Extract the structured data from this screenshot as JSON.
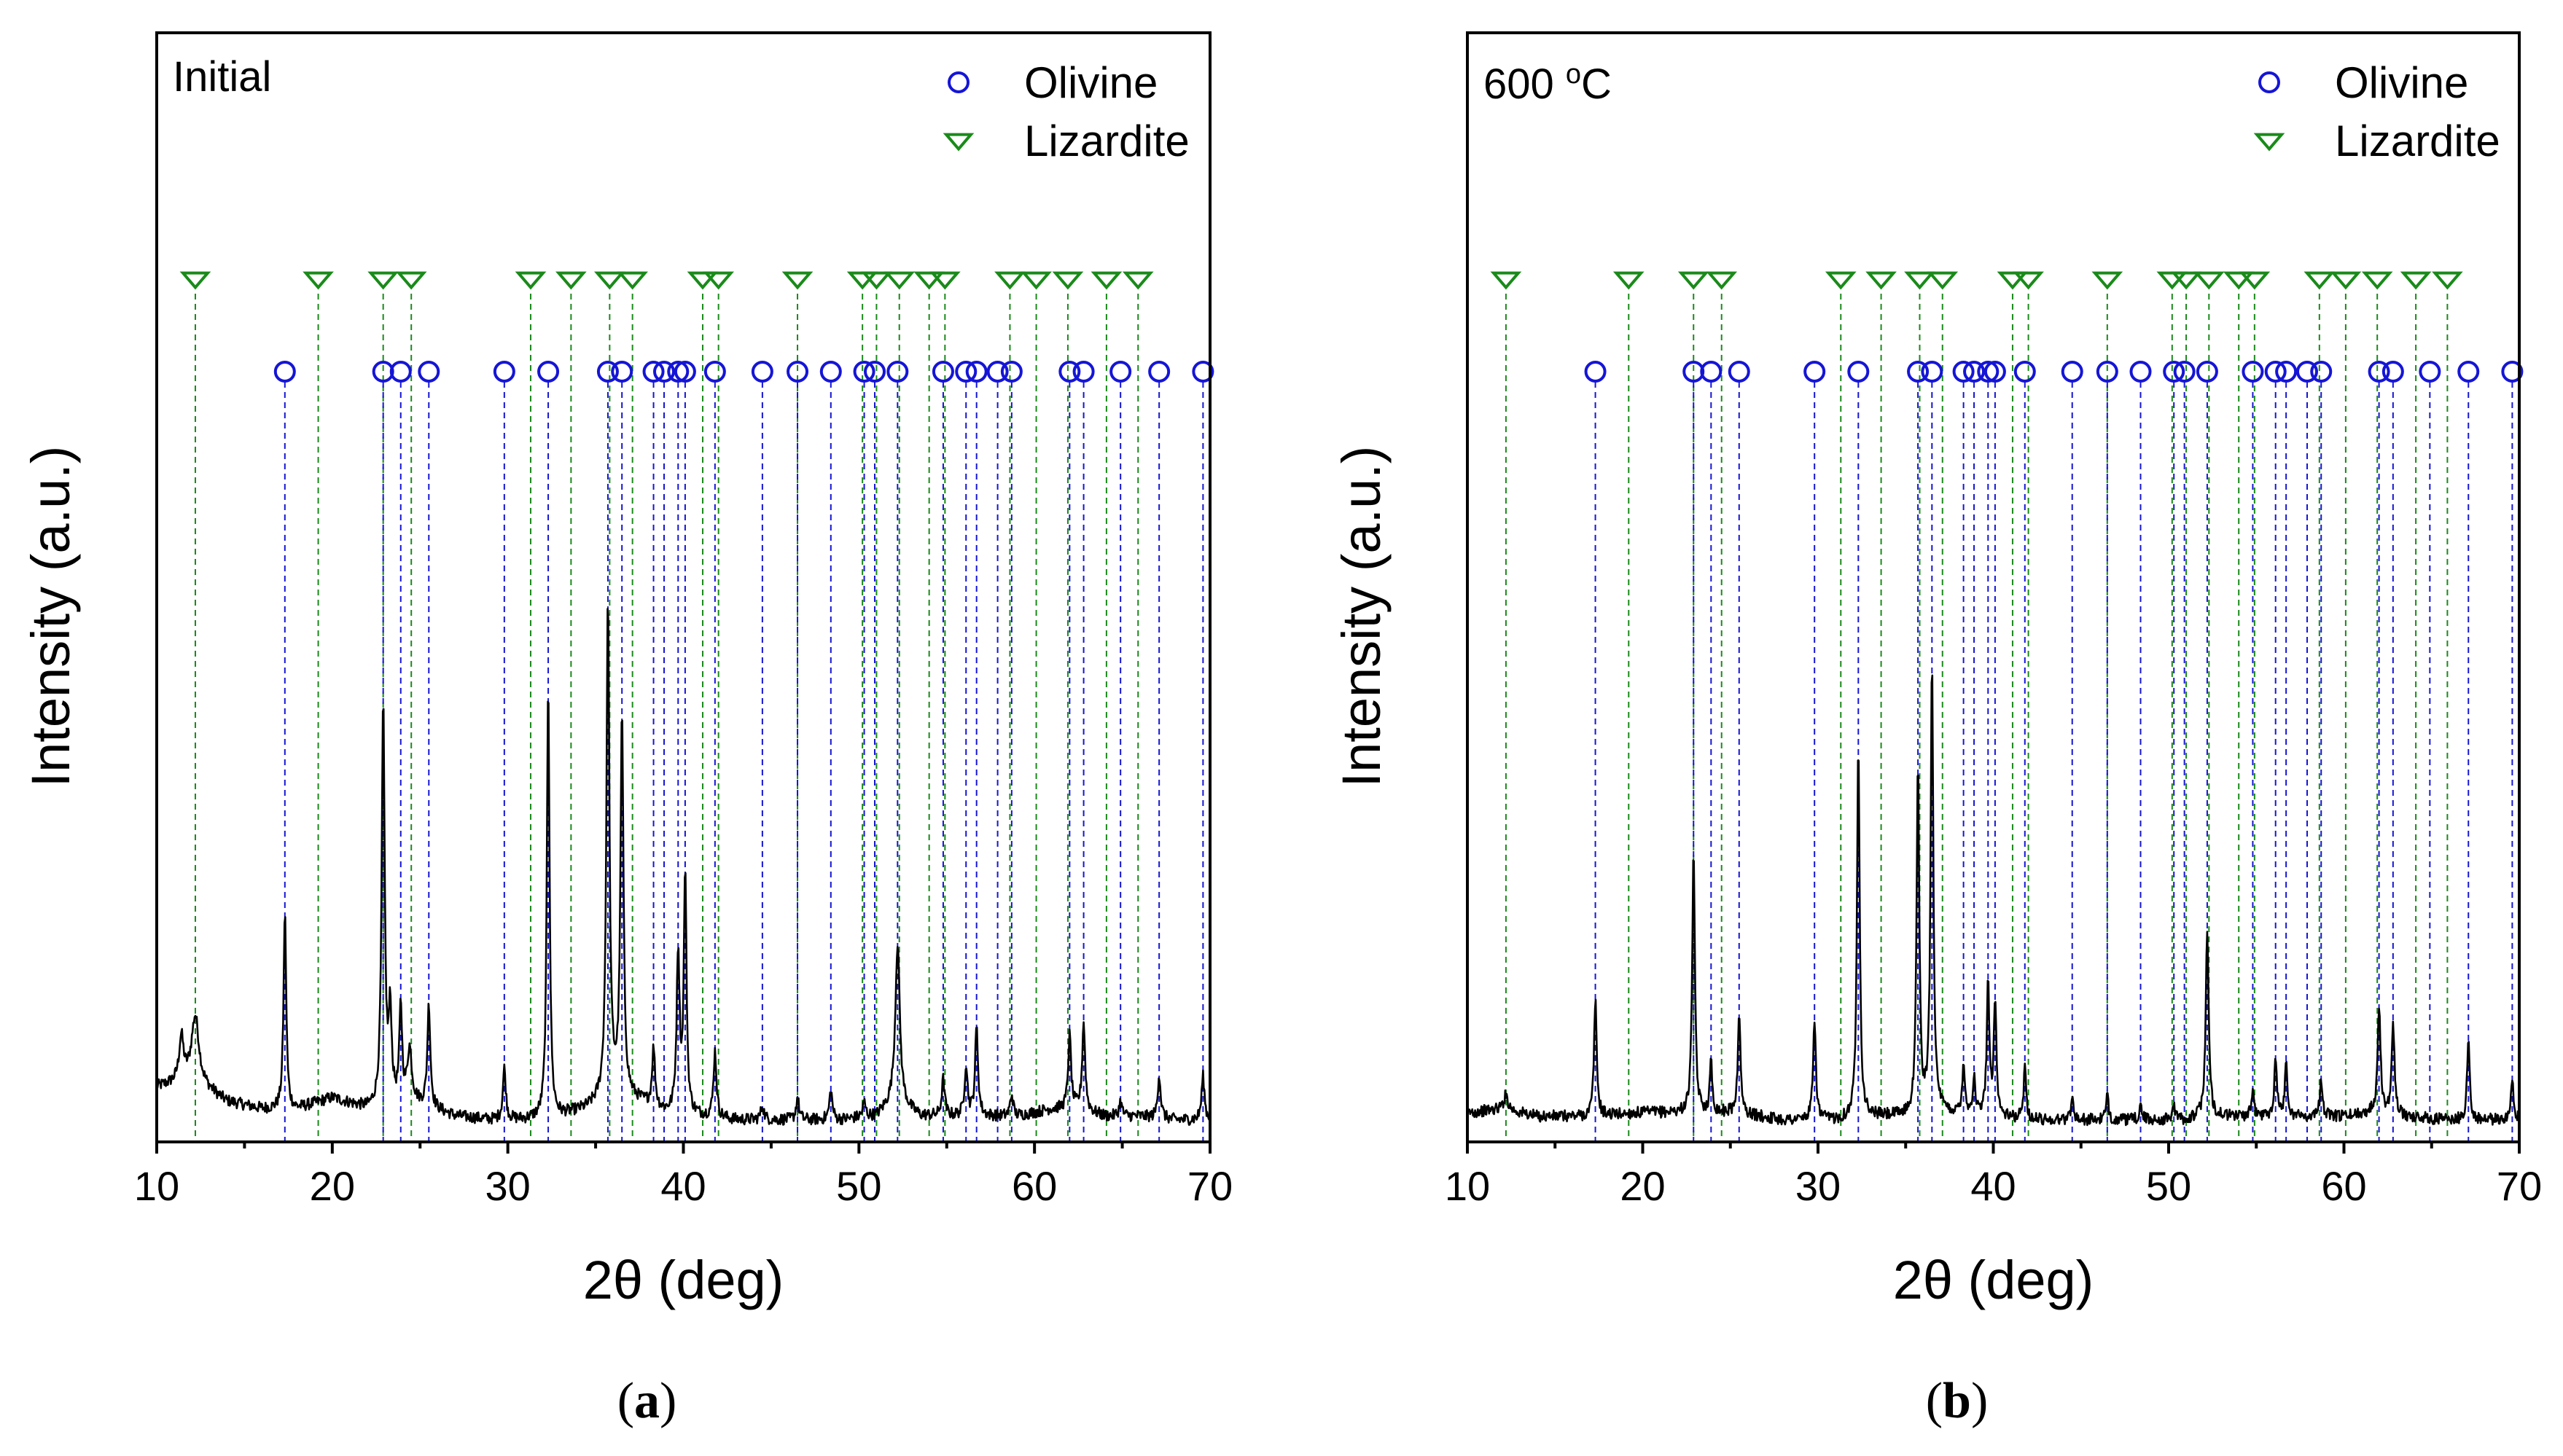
{
  "chart_data": [
    {
      "id": "a",
      "type": "line",
      "panel_label": "Initial",
      "panel_label_sup": "",
      "caption_open": "(",
      "caption_letter": "a",
      "caption_close": ")",
      "xlabel": "2θ (deg)",
      "ylabel": "Intensity (a.u.)",
      "xlim": [
        10,
        70
      ],
      "ylim": [
        0,
        100
      ],
      "xticks": [
        10,
        20,
        30,
        40,
        50,
        60,
        70
      ],
      "legend": [
        {
          "name": "Olivine",
          "marker": "circle",
          "color": "#1515d6"
        },
        {
          "name": "Lizardite",
          "marker": "triangle-down",
          "color": "#1a8a1a"
        }
      ],
      "lizardite_positions": [
        12.2,
        19.2,
        22.9,
        24.5,
        31.3,
        33.6,
        35.8,
        37.1,
        41.1,
        42.0,
        46.5,
        50.2,
        51.0,
        52.3,
        54.0,
        54.9,
        58.6,
        60.1,
        61.9,
        64.1,
        65.9
      ],
      "olivine_positions": [
        17.3,
        22.9,
        23.9,
        25.5,
        29.8,
        32.3,
        35.7,
        36.5,
        38.3,
        38.9,
        39.7,
        40.1,
        41.8,
        44.5,
        46.5,
        48.4,
        50.3,
        50.9,
        52.2,
        54.8,
        56.1,
        56.7,
        57.9,
        58.7,
        62.0,
        62.8,
        64.9,
        67.1,
        69.6
      ],
      "baseline": [
        [
          10.0,
          7
        ],
        [
          12.0,
          8
        ],
        [
          14.0,
          5
        ],
        [
          16.0,
          4
        ],
        [
          18.0,
          4
        ],
        [
          20.0,
          5.5
        ],
        [
          22.0,
          4
        ],
        [
          24.5,
          5
        ],
        [
          27.0,
          3
        ],
        [
          29.0,
          2.5
        ],
        [
          31.0,
          2.5
        ],
        [
          33.0,
          3
        ],
        [
          34.5,
          4
        ],
        [
          36.0,
          6
        ],
        [
          37.5,
          5
        ],
        [
          39.0,
          3.5
        ],
        [
          41.0,
          3
        ],
        [
          43.0,
          2.5
        ],
        [
          45.0,
          2.5
        ],
        [
          47.0,
          2.5
        ],
        [
          49.0,
          2.5
        ],
        [
          51.0,
          3
        ],
        [
          52.0,
          5
        ],
        [
          53.5,
          3
        ],
        [
          55.0,
          3
        ],
        [
          57.0,
          3
        ],
        [
          59.0,
          3
        ],
        [
          61.0,
          4
        ],
        [
          62.5,
          4
        ],
        [
          64.0,
          3
        ],
        [
          66.0,
          3
        ],
        [
          68.0,
          2.5
        ],
        [
          70.0,
          2.5
        ]
      ],
      "peaks": [
        [
          11.4,
          6,
          0.15
        ],
        [
          12.2,
          9,
          0.25
        ],
        [
          17.3,
          27,
          0.09
        ],
        [
          22.9,
          55,
          0.1
        ],
        [
          23.3,
          12,
          0.1
        ],
        [
          23.9,
          13,
          0.09
        ],
        [
          24.4,
          7,
          0.15
        ],
        [
          25.5,
          14,
          0.1
        ],
        [
          29.8,
          7,
          0.1
        ],
        [
          32.3,
          60,
          0.09
        ],
        [
          35.7,
          68,
          0.1
        ],
        [
          36.5,
          52,
          0.1
        ],
        [
          38.3,
          8,
          0.1
        ],
        [
          39.7,
          22,
          0.1
        ],
        [
          40.1,
          33,
          0.09
        ],
        [
          41.8,
          9,
          0.1
        ],
        [
          44.5,
          2,
          0.1
        ],
        [
          46.5,
          3,
          0.1
        ],
        [
          48.4,
          4,
          0.1
        ],
        [
          50.3,
          2,
          0.1
        ],
        [
          52.2,
          22,
          0.15
        ],
        [
          54.8,
          5,
          0.1
        ],
        [
          56.1,
          7,
          0.1
        ],
        [
          56.7,
          12,
          0.1
        ],
        [
          58.7,
          3,
          0.1
        ],
        [
          62.0,
          10,
          0.1
        ],
        [
          62.8,
          12,
          0.1
        ],
        [
          64.9,
          2,
          0.1
        ],
        [
          67.1,
          6,
          0.1
        ],
        [
          69.6,
          6,
          0.1
        ]
      ]
    },
    {
      "id": "b",
      "type": "line",
      "panel_label": "600 ",
      "panel_label_sup": "o",
      "panel_label_unit": "C",
      "caption_open": "(",
      "caption_letter": "b",
      "caption_close": ")",
      "xlabel": "2θ (deg)",
      "ylabel": "Intensity (a.u.)",
      "xlim": [
        10,
        70
      ],
      "ylim": [
        0,
        100
      ],
      "xticks": [
        10,
        20,
        30,
        40,
        50,
        60,
        70
      ],
      "legend": [
        {
          "name": "Olivine",
          "marker": "circle",
          "color": "#1515d6"
        },
        {
          "name": "Lizardite",
          "marker": "triangle-down",
          "color": "#1a8a1a"
        }
      ],
      "lizardite_positions": [
        12.2,
        19.2,
        22.9,
        24.5,
        31.3,
        33.6,
        35.8,
        37.1,
        41.1,
        42.0,
        46.5,
        50.2,
        51.0,
        52.3,
        54.0,
        54.9,
        58.6,
        60.1,
        61.9,
        64.1,
        65.9
      ],
      "olivine_positions": [
        17.3,
        22.9,
        23.9,
        25.5,
        29.8,
        32.3,
        35.7,
        36.5,
        38.3,
        38.9,
        39.7,
        40.1,
        41.8,
        44.5,
        46.5,
        48.4,
        50.3,
        50.9,
        52.2,
        54.8,
        56.1,
        56.7,
        57.9,
        58.7,
        62.0,
        62.8,
        64.9,
        67.1,
        69.6
      ],
      "baseline": [
        [
          10.0,
          3.5
        ],
        [
          12.0,
          4
        ],
        [
          14.0,
          3
        ],
        [
          17.0,
          3
        ],
        [
          20.0,
          3.5
        ],
        [
          22.0,
          3.5
        ],
        [
          25.0,
          3.5
        ],
        [
          28.0,
          2.5
        ],
        [
          31.0,
          2.5
        ],
        [
          33.0,
          3
        ],
        [
          35.0,
          3
        ],
        [
          37.0,
          3.5
        ],
        [
          39.0,
          3
        ],
        [
          42.0,
          2.5
        ],
        [
          45.0,
          2.5
        ],
        [
          48.0,
          2.5
        ],
        [
          51.0,
          2.5
        ],
        [
          52.0,
          3
        ],
        [
          54.0,
          3
        ],
        [
          56.0,
          3
        ],
        [
          58.0,
          3
        ],
        [
          60.0,
          3
        ],
        [
          61.5,
          3.5
        ],
        [
          63.0,
          3
        ],
        [
          66.0,
          2.5
        ],
        [
          70.0,
          2.5
        ]
      ],
      "peaks": [
        [
          12.2,
          2,
          0.15
        ],
        [
          17.3,
          16,
          0.09
        ],
        [
          22.9,
          36,
          0.09
        ],
        [
          23.9,
          7,
          0.08
        ],
        [
          25.5,
          14,
          0.09
        ],
        [
          29.8,
          14,
          0.09
        ],
        [
          32.3,
          52,
          0.09
        ],
        [
          35.7,
          48,
          0.09
        ],
        [
          36.5,
          62,
          0.09
        ],
        [
          38.3,
          7,
          0.09
        ],
        [
          38.9,
          5,
          0.09
        ],
        [
          39.7,
          18,
          0.09
        ],
        [
          40.1,
          16,
          0.09
        ],
        [
          41.8,
          7,
          0.09
        ],
        [
          44.5,
          3,
          0.09
        ],
        [
          46.5,
          3,
          0.09
        ],
        [
          48.4,
          2,
          0.09
        ],
        [
          50.3,
          2,
          0.09
        ],
        [
          52.2,
          25,
          0.1
        ],
        [
          54.8,
          3,
          0.09
        ],
        [
          56.1,
          8,
          0.09
        ],
        [
          56.7,
          7,
          0.09
        ],
        [
          58.7,
          5,
          0.09
        ],
        [
          62.0,
          15,
          0.1
        ],
        [
          62.8,
          13,
          0.1
        ],
        [
          67.1,
          11,
          0.09
        ],
        [
          69.6,
          6,
          0.09
        ]
      ]
    }
  ]
}
